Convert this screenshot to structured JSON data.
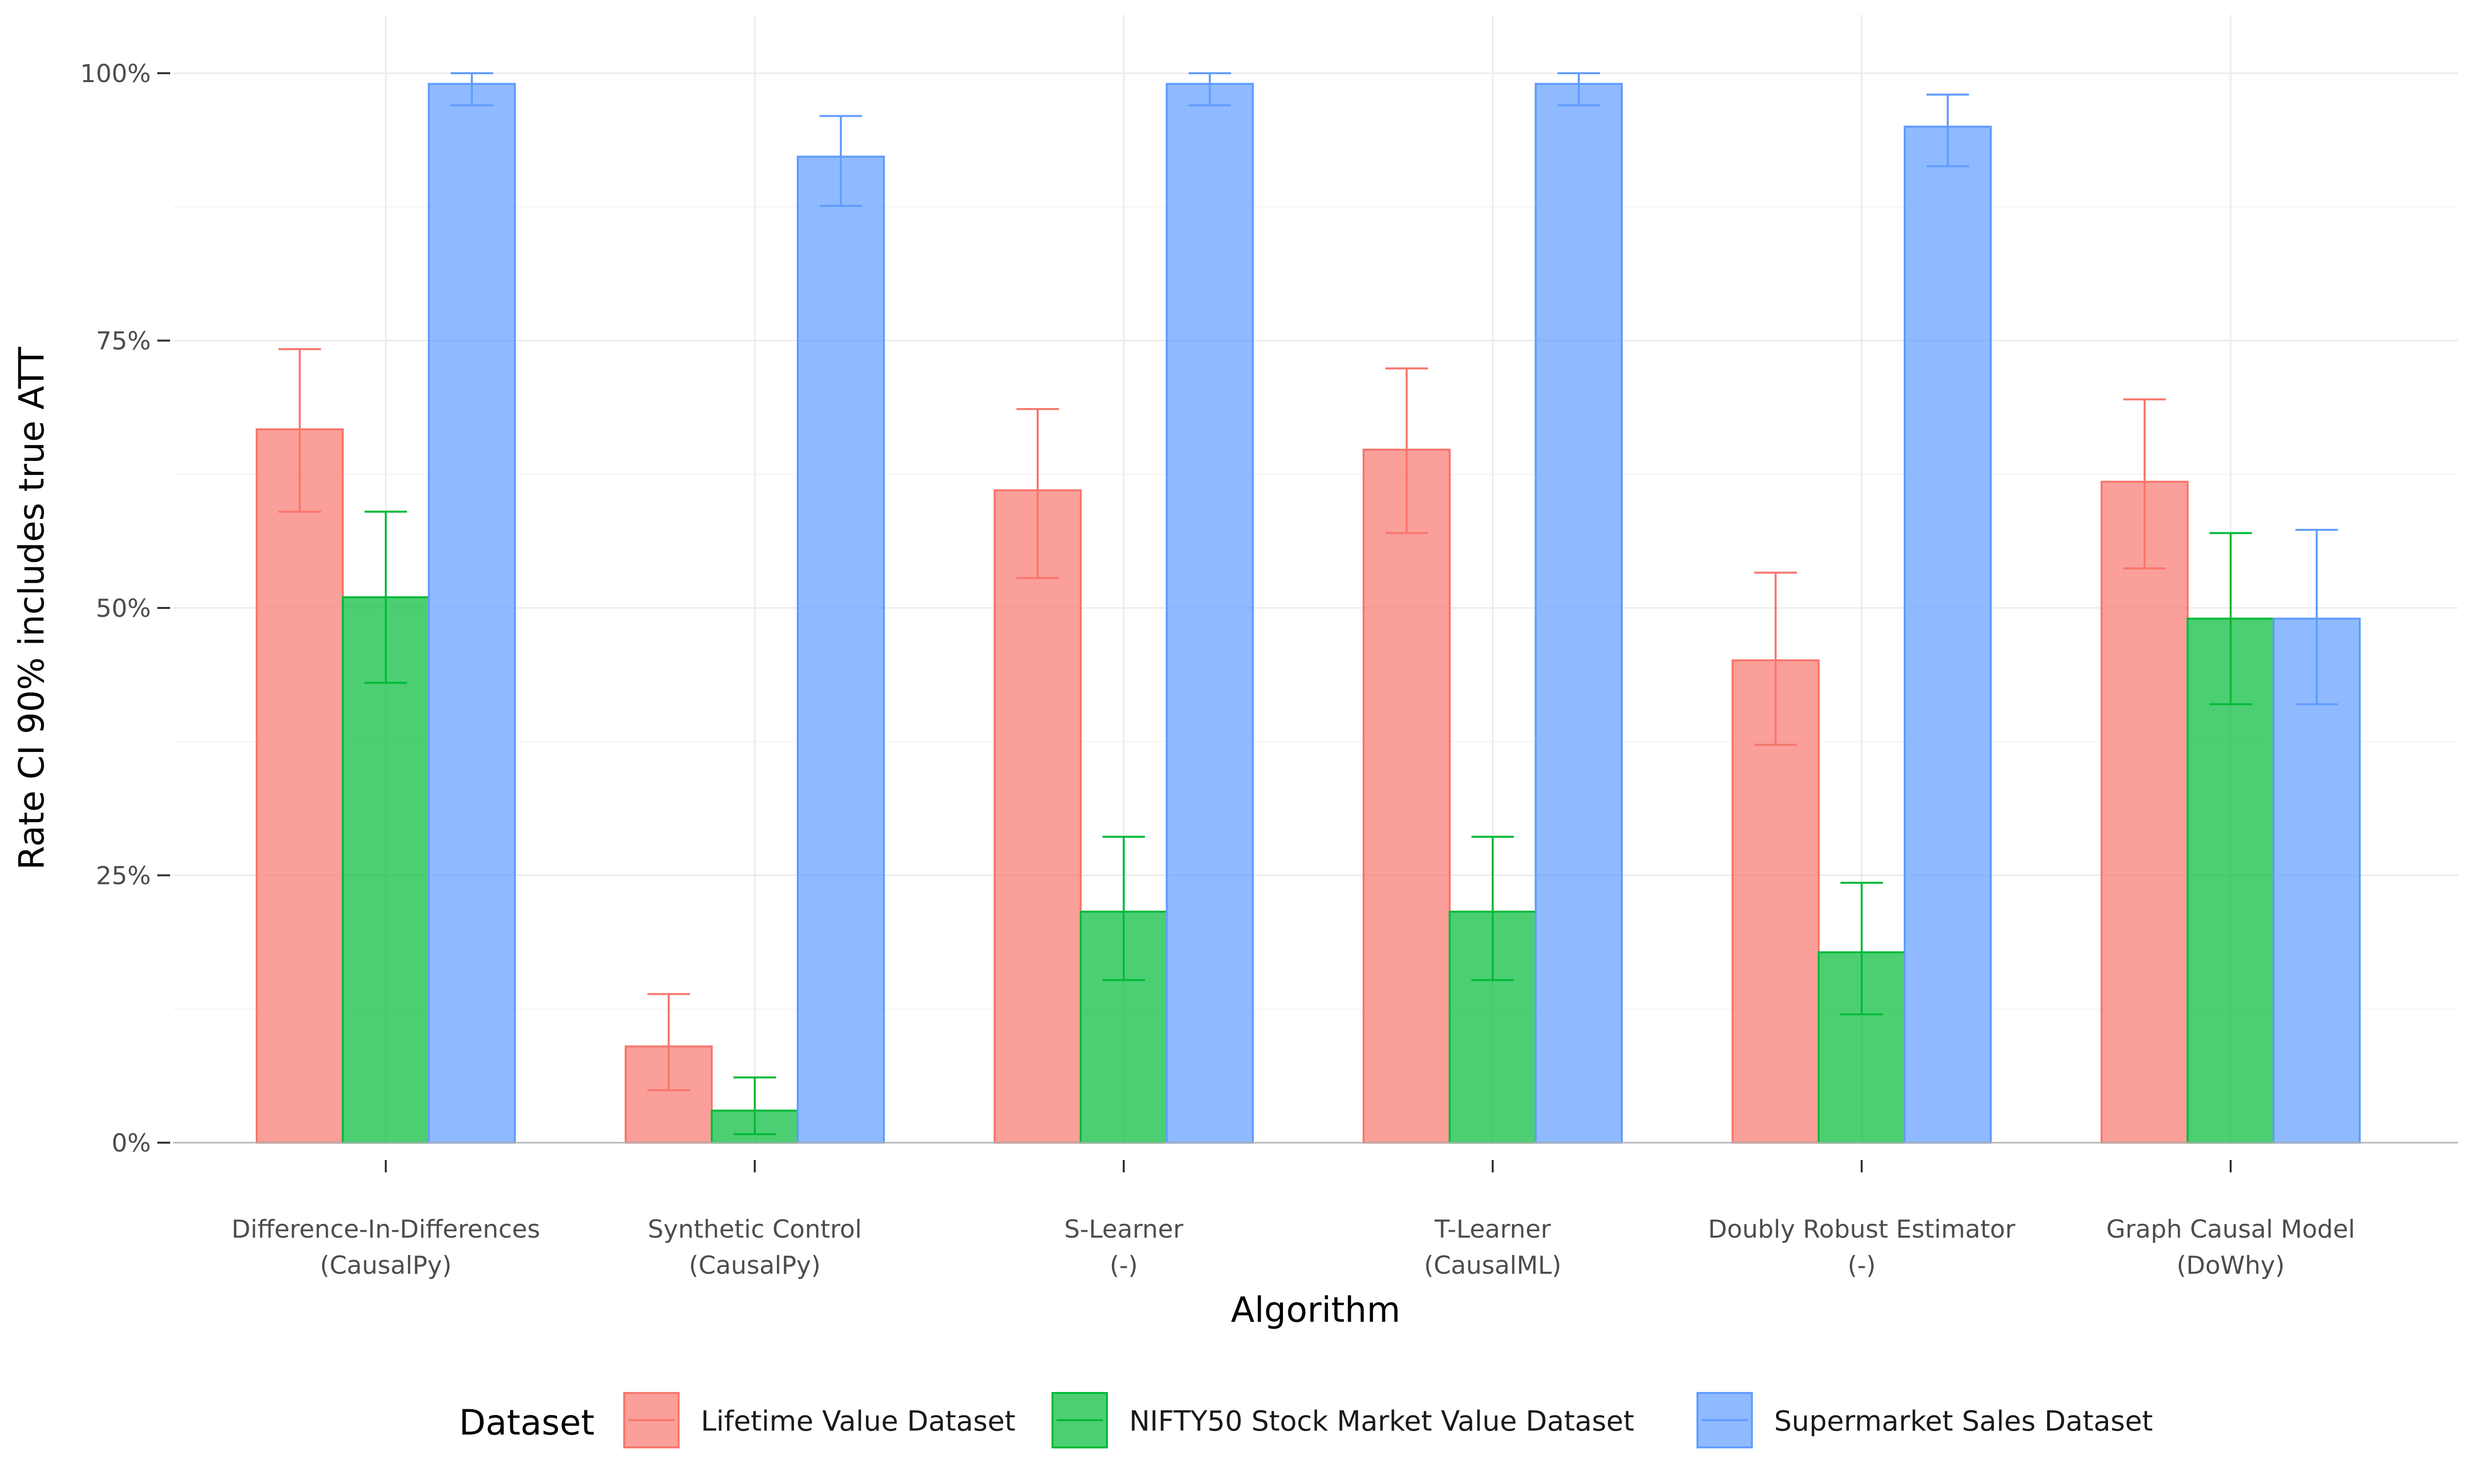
{
  "chart_data": {
    "type": "bar",
    "title": "",
    "xlabel": "Algorithm",
    "ylabel": "Rate CI 90% includes true ATT",
    "ylim": [
      0,
      1
    ],
    "yticks": [
      {
        "value": 0,
        "label": "0%"
      },
      {
        "value": 0.25,
        "label": "25%"
      },
      {
        "value": 0.5,
        "label": "50%"
      },
      {
        "value": 0.75,
        "label": "75%"
      },
      {
        "value": 1.0,
        "label": "100%"
      }
    ],
    "grid": true,
    "legend_position": "bottom",
    "legend_title": "Dataset",
    "categories": [
      {
        "line1": "Difference-In-Differences",
        "line2": "(CausalPy)"
      },
      {
        "line1": "Synthetic Control",
        "line2": "(CausalPy)"
      },
      {
        "line1": "S-Learner",
        "line2": "(-)"
      },
      {
        "line1": "T-Learner",
        "line2": "(CausalML)"
      },
      {
        "line1": "Doubly Robust Estimator",
        "line2": "(-)"
      },
      {
        "line1": "Graph Causal Model",
        "line2": "(DoWhy)"
      }
    ],
    "series": [
      {
        "name": "Lifetime Value Dataset",
        "fill": "#f8766d",
        "values": [
          0.667,
          0.09,
          0.61,
          0.648,
          0.451,
          0.618
        ],
        "ci_low": [
          0.59,
          0.049,
          0.528,
          0.57,
          0.372,
          0.537
        ],
        "ci_high": [
          0.742,
          0.139,
          0.686,
          0.724,
          0.533,
          0.695
        ]
      },
      {
        "name": "NIFTY50 Stock Market Value Dataset",
        "fill": "#00ba38",
        "values": [
          0.51,
          0.03,
          0.216,
          0.216,
          0.178,
          0.49
        ],
        "ci_low": [
          0.43,
          0.008,
          0.152,
          0.152,
          0.12,
          0.41
        ],
        "ci_high": [
          0.59,
          0.061,
          0.286,
          0.286,
          0.243,
          0.57
        ]
      },
      {
        "name": "Supermarket Sales Dataset",
        "fill": "#619cff",
        "values": [
          0.99,
          0.922,
          0.99,
          0.99,
          0.95,
          0.49
        ],
        "ci_low": [
          0.97,
          0.876,
          0.97,
          0.97,
          0.913,
          0.41
        ],
        "ci_high": [
          1.0,
          0.96,
          1.0,
          1.0,
          0.98,
          0.573
        ]
      }
    ]
  }
}
